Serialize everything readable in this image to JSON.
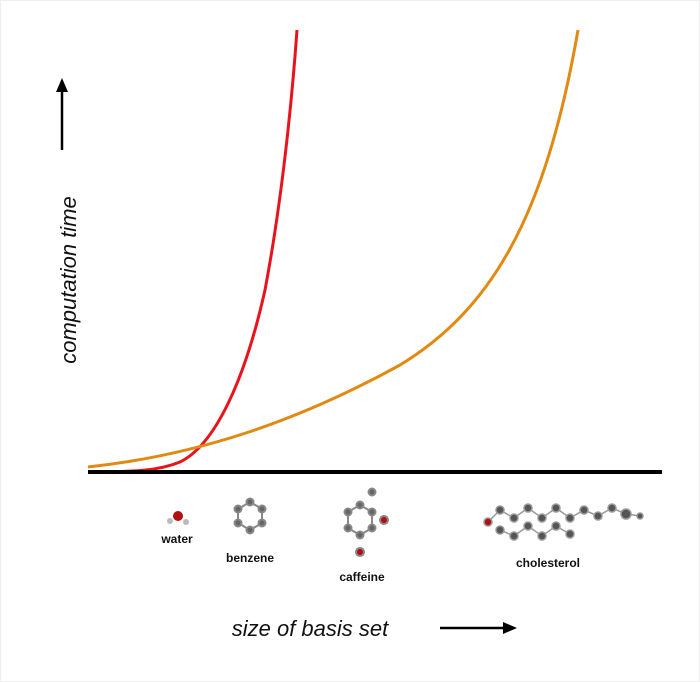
{
  "axes": {
    "y_label": "computation time",
    "x_label": "size of basis set"
  },
  "molecules": [
    {
      "label": "water"
    },
    {
      "label": "benzene"
    },
    {
      "label": "caffeine"
    },
    {
      "label": "cholesterol"
    }
  ]
}
